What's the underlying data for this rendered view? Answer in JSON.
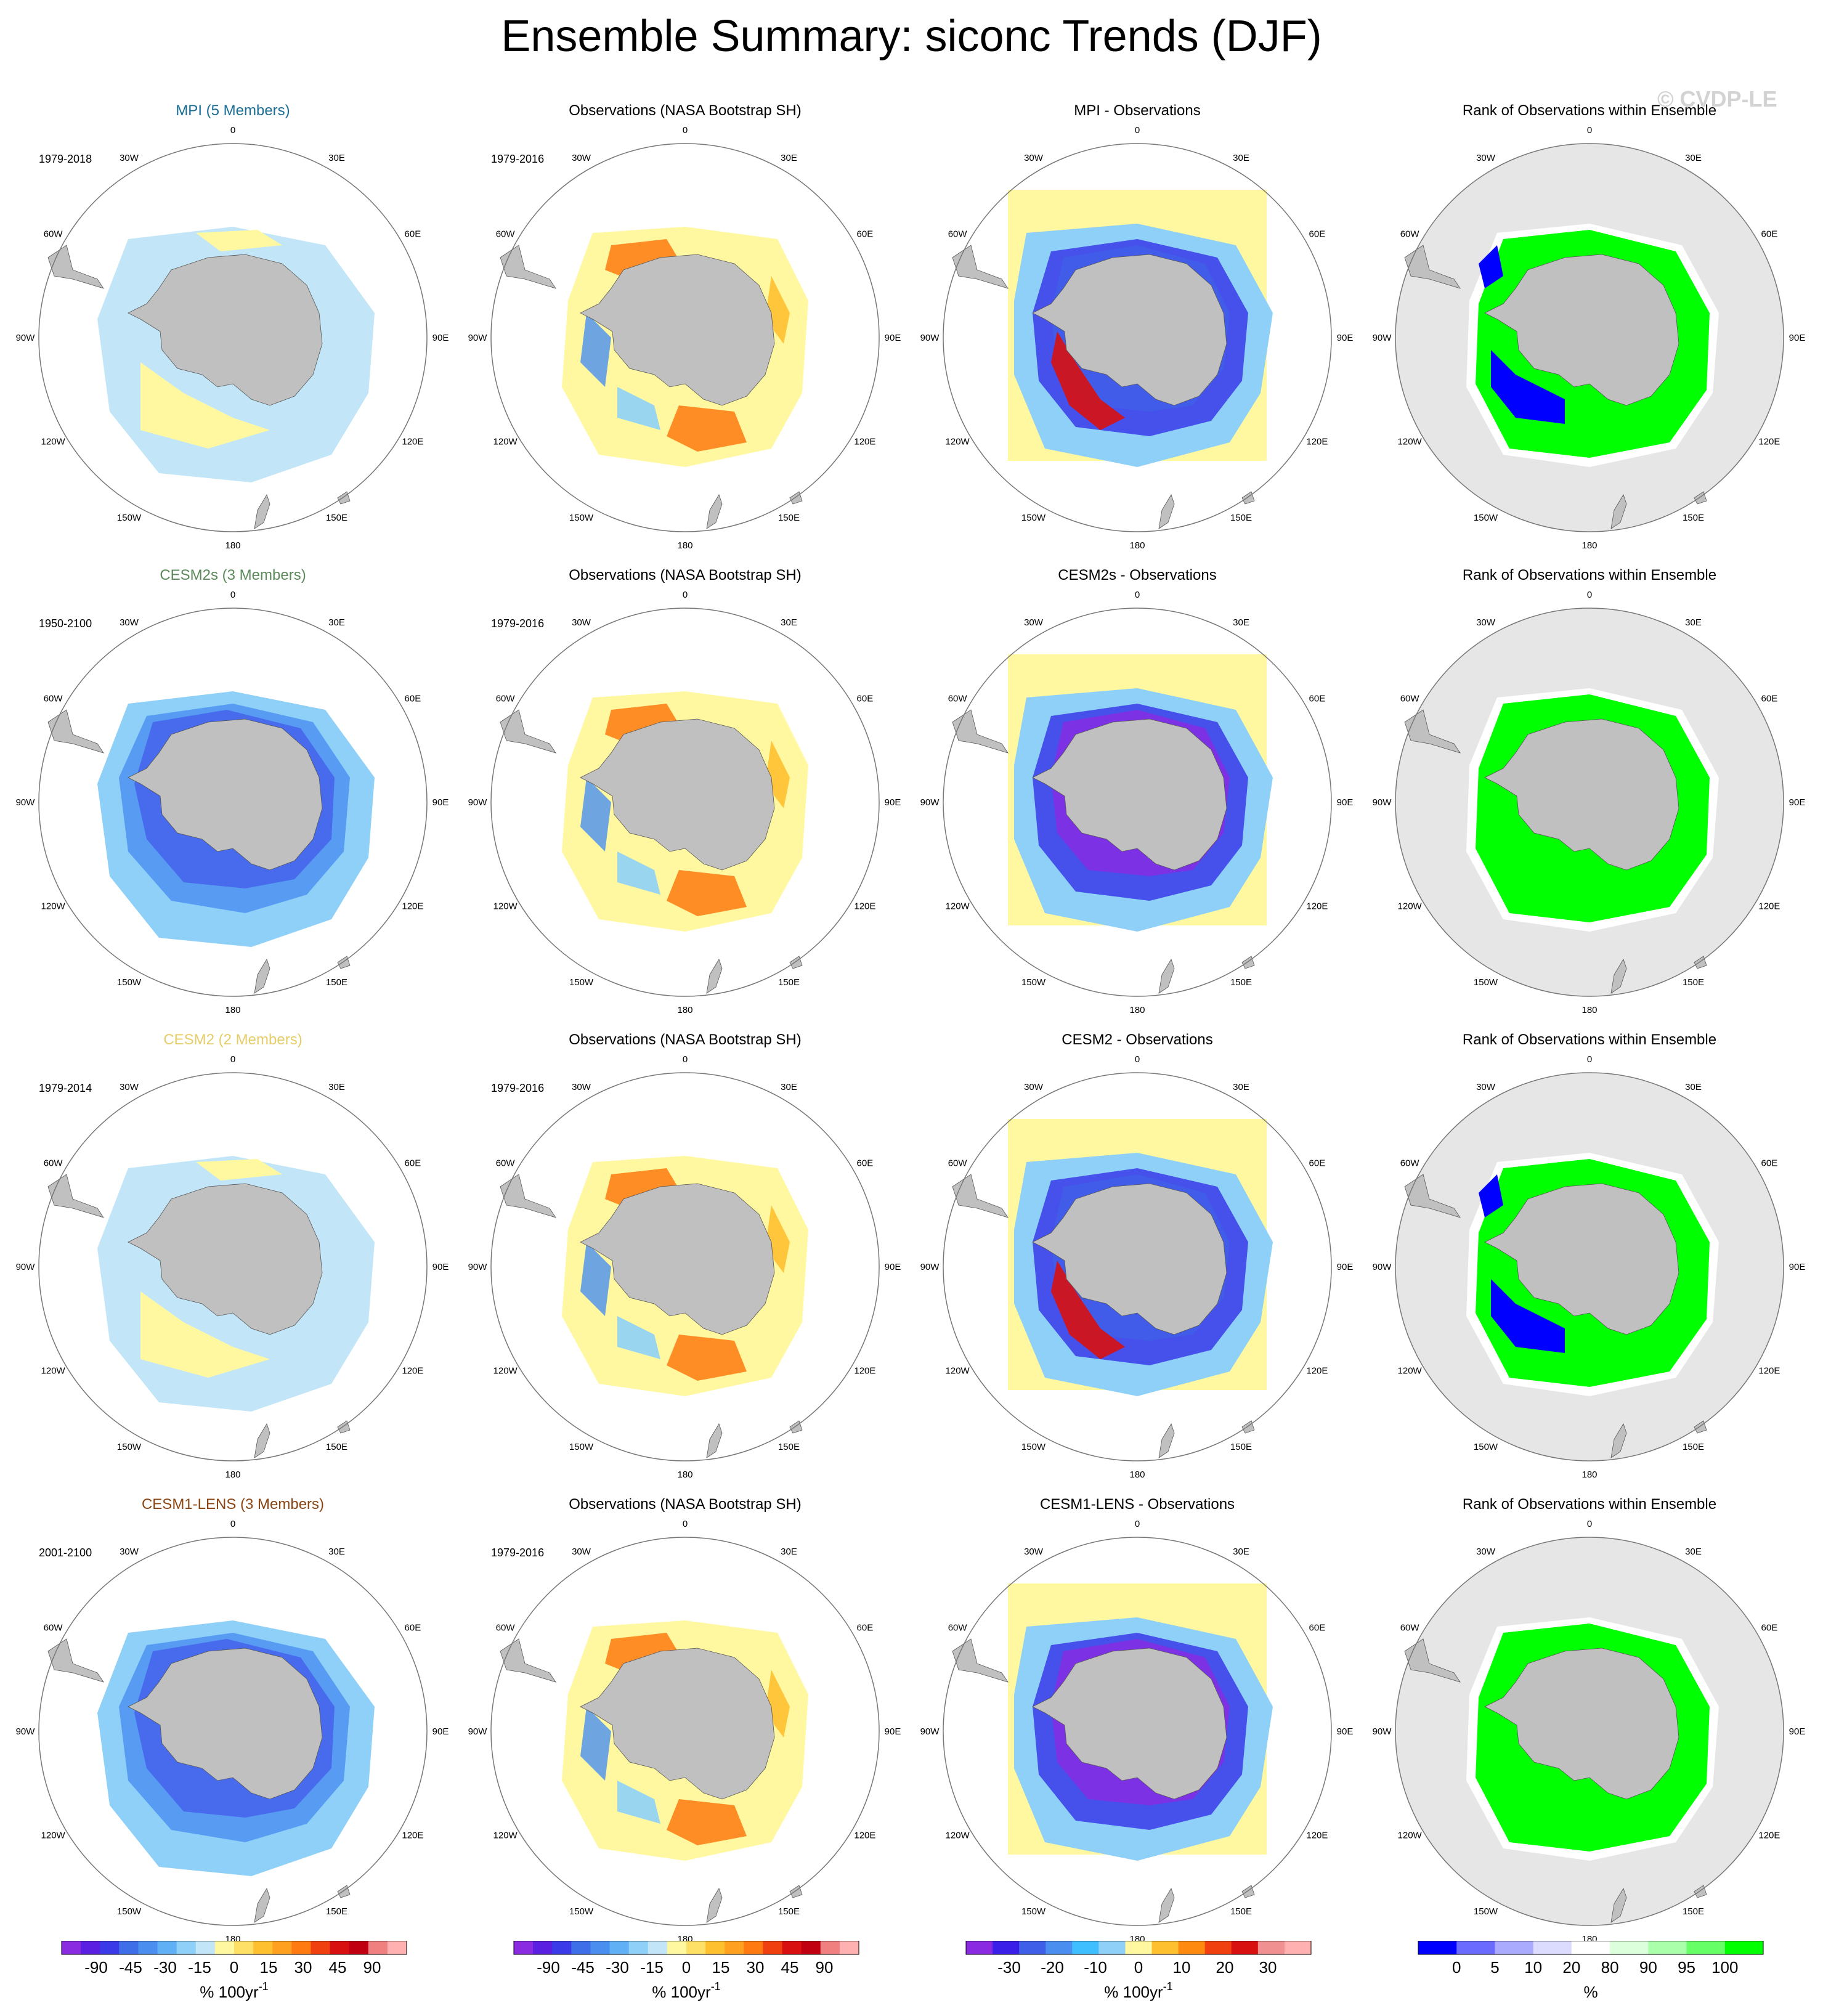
{
  "title": "Ensemble Summary: siconc Trends (DJF)",
  "watermark": "© CVDP-LE",
  "lon_labels": [
    "0",
    "30E",
    "60E",
    "90E",
    "120E",
    "150E",
    "180",
    "150W",
    "120W",
    "90W",
    "60W",
    "30W"
  ],
  "rows": [
    {
      "model_title": "MPI (5 Members)",
      "model_title_color": "#1a6e96",
      "period": "1979-2018",
      "obs_title": "Observations (NASA Bootstrap SH)",
      "obs_period": "1979-2016",
      "diff_title": "MPI - Observations",
      "rank_title": "Rank of Observations within Ensemble"
    },
    {
      "model_title": "CESM2s (3 Members)",
      "model_title_color": "#5a8a5a",
      "period": "1950-2100",
      "obs_title": "Observations (NASA Bootstrap SH)",
      "obs_period": "1979-2016",
      "diff_title": "CESM2s - Observations",
      "rank_title": "Rank of Observations within Ensemble"
    },
    {
      "model_title": "CESM2 (2 Members)",
      "model_title_color": "#e6cd6a",
      "period": "1979-2014",
      "obs_title": "Observations (NASA Bootstrap SH)",
      "obs_period": "1979-2016",
      "diff_title": "CESM2 - Observations",
      "rank_title": "Rank of Observations within Ensemble"
    },
    {
      "model_title": "CESM1-LENS (3 Members)",
      "model_title_color": "#8b4513",
      "period": "2001-2100",
      "obs_title": "Observations (NASA Bootstrap SH)",
      "obs_period": "1979-2016",
      "diff_title": "CESM1-LENS - Observations",
      "rank_title": "Rank of Observations within Ensemble"
    }
  ],
  "colorbars": [
    {
      "labels": [
        "-90",
        "-45",
        "-30",
        "-15",
        "0",
        "15",
        "30",
        "45",
        "90"
      ],
      "unit": "% 100yr",
      "unit_exp": "-1",
      "colors": [
        "#8a2be2",
        "#5a1fe0",
        "#3a3ae8",
        "#3f6fe8",
        "#4a8ff0",
        "#5fb0f5",
        "#8ed0f7",
        "#c2e6f8",
        "#fff8a0",
        "#ffe066",
        "#ffc030",
        "#ffa020",
        "#ff7a10",
        "#f04010",
        "#d81010",
        "#c00010",
        "#f08080",
        "#ffb0b0"
      ]
    },
    {
      "labels": [
        "-90",
        "-45",
        "-30",
        "-15",
        "0",
        "15",
        "30",
        "45",
        "90"
      ],
      "unit": "% 100yr",
      "unit_exp": "-1",
      "colors": [
        "#8a2be2",
        "#5a1fe0",
        "#3a3ae8",
        "#3f6fe8",
        "#4a8ff0",
        "#5fb0f5",
        "#8ed0f7",
        "#c2e6f8",
        "#fff8a0",
        "#ffe066",
        "#ffc030",
        "#ffa020",
        "#ff7a10",
        "#f04010",
        "#d81010",
        "#c00010",
        "#f08080",
        "#ffb0b0"
      ]
    },
    {
      "labels": [
        "-30",
        "-20",
        "-10",
        "0",
        "10",
        "20",
        "30"
      ],
      "unit": "% 100yr",
      "unit_exp": "-1",
      "colors": [
        "#8a2be2",
        "#3a1fe8",
        "#3f5fe8",
        "#4a8ff0",
        "#3fbfff",
        "#8ed0f7",
        "#fff8a0",
        "#ffc030",
        "#ff8a10",
        "#f04010",
        "#d81010",
        "#f09090",
        "#ffb0b0"
      ]
    },
    {
      "labels": [
        "0",
        "5",
        "10",
        "20",
        "80",
        "90",
        "95",
        "100"
      ],
      "unit": "%",
      "unit_exp": "",
      "colors": [
        "#0000ff",
        "#6b6bff",
        "#aaaaff",
        "#dcdcff",
        "#ffffff",
        "#dcffdc",
        "#aaffaa",
        "#66ff66",
        "#00ff00"
      ]
    }
  ]
}
